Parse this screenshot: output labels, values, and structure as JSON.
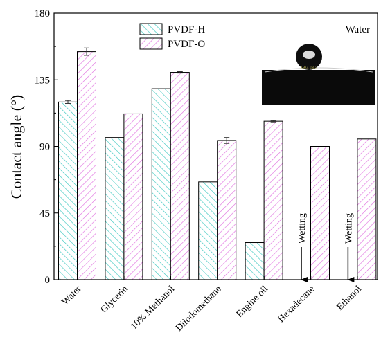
{
  "chart_data": {
    "type": "bar",
    "categories": [
      "Water",
      "Glycerin",
      "10% Methanol",
      "Diiodomethane",
      "Engine oil",
      "Hexadecane",
      "Ethanol"
    ],
    "series": [
      {
        "name": "PVDF-H",
        "color": "#3cc8c0",
        "values": [
          120,
          96,
          129,
          66,
          25,
          null,
          null
        ],
        "errors": [
          1,
          null,
          null,
          null,
          null,
          null,
          null
        ]
      },
      {
        "name": "PVDF-O",
        "color": "#e070e0",
        "values": [
          154,
          112,
          140,
          94,
          107,
          90,
          95
        ],
        "errors": [
          2.5,
          null,
          0.5,
          2,
          0.5,
          null,
          null
        ]
      }
    ],
    "ylabel": "Contact angle (°)",
    "ylim": [
      0,
      180
    ],
    "yticks": [
      0,
      45,
      90,
      135,
      180
    ],
    "legend_position": "top-center",
    "annotations": [
      {
        "text": "Wetting",
        "category": "Hexadecane"
      },
      {
        "text": "Wetting",
        "category": "Ethanol"
      }
    ],
    "inset": {
      "label": "Water",
      "readout": "150.4  150.5"
    }
  }
}
